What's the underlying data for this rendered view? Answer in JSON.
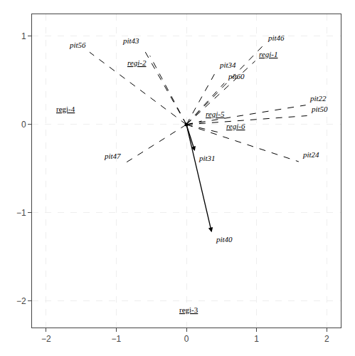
{
  "chart_data": {
    "type": "vector",
    "origin": [
      0,
      0
    ],
    "xlim": [
      -2.2,
      2.2
    ],
    "ylim": [
      -2.3,
      1.25
    ],
    "xticks": [
      -2,
      -1,
      0,
      1,
      2
    ],
    "yticks": [
      -2,
      -1,
      0,
      1
    ],
    "grid": true,
    "series": [
      {
        "type": "line",
        "line_style": "dashed",
        "color": "black",
        "vectors": [
          {
            "label": "pit56",
            "x": -1.38,
            "y": 0.82,
            "underline": false
          },
          {
            "label": "pit43",
            "x": -0.62,
            "y": 0.87,
            "underline": false
          },
          {
            "label": "regi-2",
            "x": -0.52,
            "y": 0.78,
            "underline": true
          },
          {
            "label": "pit34",
            "x": 0.42,
            "y": 0.6,
            "underline": false
          },
          {
            "label": "pit60",
            "x": 0.54,
            "y": 0.47,
            "underline": false
          },
          {
            "label": "regi-1",
            "x": 0.98,
            "y": 0.72,
            "underline": true
          },
          {
            "label": "pit46",
            "x": 1.1,
            "y": 0.9,
            "underline": false
          },
          {
            "label": "pit22",
            "x": 1.7,
            "y": 0.22,
            "underline": false
          },
          {
            "label": "pit50",
            "x": 1.72,
            "y": 0.1,
            "underline": false
          },
          {
            "label": "regi-5",
            "x": 0.22,
            "y": 0.04,
            "underline": true
          },
          {
            "label": "regi-6",
            "x": 0.52,
            "y": -0.1,
            "underline": true
          },
          {
            "label": "pit24",
            "x": 1.6,
            "y": -0.42,
            "underline": false
          },
          {
            "label": "pit47",
            "x": -0.88,
            "y": -0.44,
            "underline": false
          }
        ]
      },
      {
        "type": "arrow",
        "line_style": "solid",
        "color": "black",
        "vectors": [
          {
            "label": "pit31",
            "x": 0.12,
            "y": -0.3,
            "underline": false
          },
          {
            "label": "pit40",
            "x": 0.36,
            "y": -1.22,
            "underline": false
          }
        ]
      }
    ],
    "annotations": [
      {
        "text": "regi-4",
        "x": -1.72,
        "y": 0.18,
        "underline": true
      },
      {
        "text": "regi-3",
        "x": 0.04,
        "y": -2.1,
        "underline": true
      }
    ]
  }
}
